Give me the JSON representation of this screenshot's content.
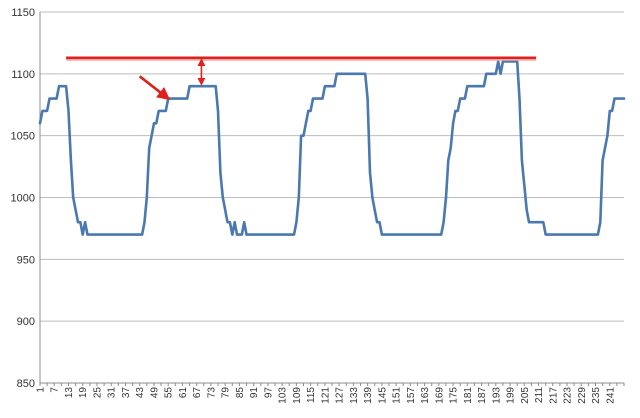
{
  "chart_data": {
    "type": "line",
    "title": "",
    "xlabel": "",
    "ylabel": "",
    "ylim": [
      850,
      1150
    ],
    "yticks": [
      850,
      900,
      950,
      1000,
      1050,
      1100,
      1150
    ],
    "ytick_labels": [
      "850",
      "900",
      "950",
      "1000",
      "1050",
      "1100",
      "1150"
    ],
    "xlim": [
      1,
      247
    ],
    "xtick_labels": [
      "1",
      "7",
      "13",
      "19",
      "25",
      "31",
      "37",
      "43",
      "49",
      "55",
      "61",
      "67",
      "73",
      "79",
      "85",
      "91",
      "97",
      "103",
      "109",
      "115",
      "121",
      "127",
      "133",
      "139",
      "145",
      "151",
      "157",
      "163",
      "169",
      "175",
      "181",
      "187",
      "193",
      "199",
      "205",
      "211",
      "217",
      "223",
      "229",
      "235",
      "241"
    ],
    "grid": true,
    "series": [
      {
        "color": "#4a78b0",
        "points": [
          [
            1,
            1060
          ],
          [
            2,
            1070
          ],
          [
            4,
            1070
          ],
          [
            5,
            1080
          ],
          [
            8,
            1080
          ],
          [
            9,
            1090
          ],
          [
            12,
            1090
          ],
          [
            13,
            1070
          ],
          [
            14,
            1030
          ],
          [
            15,
            1000
          ],
          [
            16,
            990
          ],
          [
            17,
            980
          ],
          [
            18,
            980
          ],
          [
            19,
            970
          ],
          [
            20,
            980
          ],
          [
            21,
            970
          ],
          [
            25,
            970
          ],
          [
            35,
            970
          ],
          [
            44,
            970
          ],
          [
            45,
            980
          ],
          [
            46,
            1000
          ],
          [
            47,
            1040
          ],
          [
            48,
            1050
          ],
          [
            49,
            1060
          ],
          [
            50,
            1060
          ],
          [
            51,
            1070
          ],
          [
            54,
            1070
          ],
          [
            55,
            1080
          ],
          [
            63,
            1080
          ],
          [
            64,
            1090
          ],
          [
            75,
            1090
          ],
          [
            76,
            1070
          ],
          [
            77,
            1020
          ],
          [
            78,
            1000
          ],
          [
            79,
            990
          ],
          [
            80,
            980
          ],
          [
            81,
            980
          ],
          [
            82,
            970
          ],
          [
            83,
            980
          ],
          [
            84,
            970
          ],
          [
            86,
            970
          ],
          [
            87,
            980
          ],
          [
            88,
            970
          ],
          [
            100,
            970
          ],
          [
            108,
            970
          ],
          [
            109,
            980
          ],
          [
            110,
            1000
          ],
          [
            111,
            1050
          ],
          [
            112,
            1050
          ],
          [
            113,
            1060
          ],
          [
            114,
            1070
          ],
          [
            115,
            1070
          ],
          [
            116,
            1080
          ],
          [
            120,
            1080
          ],
          [
            121,
            1090
          ],
          [
            125,
            1090
          ],
          [
            126,
            1100
          ],
          [
            138,
            1100
          ],
          [
            139,
            1080
          ],
          [
            140,
            1020
          ],
          [
            141,
            1000
          ],
          [
            142,
            990
          ],
          [
            143,
            980
          ],
          [
            144,
            980
          ],
          [
            145,
            970
          ],
          [
            160,
            970
          ],
          [
            170,
            970
          ],
          [
            171,
            980
          ],
          [
            172,
            1000
          ],
          [
            173,
            1030
          ],
          [
            174,
            1040
          ],
          [
            175,
            1060
          ],
          [
            176,
            1070
          ],
          [
            177,
            1070
          ],
          [
            178,
            1080
          ],
          [
            180,
            1080
          ],
          [
            181,
            1090
          ],
          [
            188,
            1090
          ],
          [
            189,
            1100
          ],
          [
            193,
            1100
          ],
          [
            194,
            1110
          ],
          [
            195,
            1100
          ],
          [
            196,
            1110
          ],
          [
            202,
            1110
          ],
          [
            203,
            1080
          ],
          [
            204,
            1030
          ],
          [
            205,
            1010
          ],
          [
            206,
            990
          ],
          [
            207,
            980
          ],
          [
            208,
            980
          ],
          [
            213,
            980
          ],
          [
            214,
            970
          ],
          [
            225,
            970
          ],
          [
            236,
            970
          ],
          [
            237,
            980
          ],
          [
            238,
            1030
          ],
          [
            239,
            1040
          ],
          [
            240,
            1050
          ],
          [
            241,
            1070
          ],
          [
            242,
            1070
          ],
          [
            243,
            1080
          ],
          [
            247,
            1080
          ]
        ]
      }
    ],
    "annotations": {
      "ceiling_line": {
        "value": 1113,
        "x_from": 12,
        "x_to": 210,
        "color": "#e0201c"
      },
      "gap_arrow": {
        "x": 69,
        "y_from": 1090,
        "y_to": 1113,
        "color": "#e0201c"
      },
      "pointer_arrow": {
        "tail": [
          43,
          1098
        ],
        "head": [
          55,
          1080
        ],
        "color": "#e0201c"
      }
    }
  }
}
